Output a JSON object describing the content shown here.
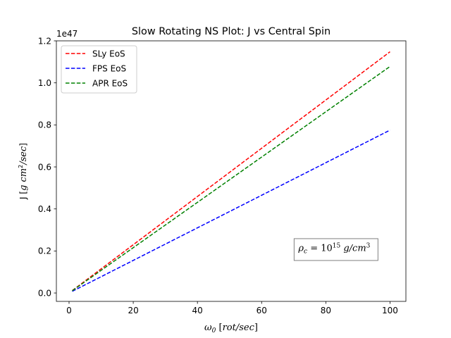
{
  "chart_data": {
    "type": "line",
    "title": "Slow Rotating NS Plot: J vs Central Spin",
    "xlabel": {
      "symbol": "ω",
      "sub": "0",
      "unit": "rot/sec"
    },
    "ylabel": {
      "prefix": "J",
      "unit_main": "g cm",
      "unit_sup": "2",
      "unit_tail": "/sec"
    },
    "offset_text": "1e47",
    "xlim": [
      -3.95,
      104.95
    ],
    "ylim": [
      -0.04,
      1.2
    ],
    "xticks": [
      0,
      20,
      40,
      60,
      80,
      100
    ],
    "yticks": [
      0.0,
      0.2,
      0.4,
      0.6,
      0.8,
      1.0,
      1.2
    ],
    "ytick_labels": [
      "0.0",
      "0.2",
      "0.4",
      "0.6",
      "0.8",
      "1.0",
      "1.2"
    ],
    "legend_position": "top-left",
    "series": [
      {
        "name": "SLy EoS",
        "color": "#ff0000",
        "dash": "dashed",
        "x": [
          1,
          100
        ],
        "y": [
          0.0115,
          1.148
        ]
      },
      {
        "name": "FPS EoS",
        "color": "#0000ff",
        "dash": "dashed",
        "x": [
          1,
          100
        ],
        "y": [
          0.0078,
          0.775
        ]
      },
      {
        "name": "APR EoS",
        "color": "#008000",
        "dash": "dashed",
        "x": [
          1,
          100
        ],
        "y": [
          0.0108,
          1.078
        ]
      }
    ],
    "annotation": {
      "base": "ρ",
      "base_sub": "c",
      "eq": " = 10",
      "exp": "15",
      "unit": " g/cm",
      "unit_sup": "3",
      "x": 71,
      "y": 0.215
    }
  }
}
